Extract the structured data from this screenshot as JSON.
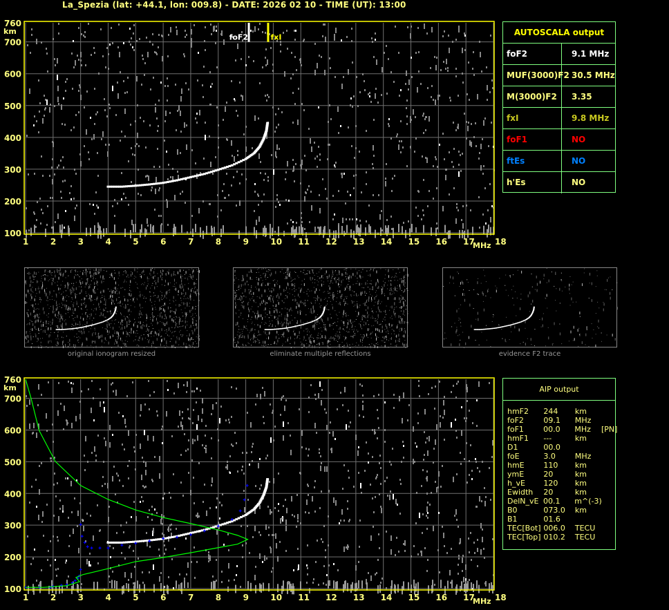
{
  "header": {
    "title": "La_Spezia (lat: +44.1, lon: 009.8) - DATE: 2026 02 10 - TIME (UT): 13:00"
  },
  "autoscala": {
    "title": "AUTOSCALA output",
    "rows": [
      {
        "label": "foF2",
        "value": "9.1 MHz",
        "color": "#ffffff"
      },
      {
        "label": "MUF(3000)F2",
        "value": "30.5 MHz",
        "color": "#ffff80"
      },
      {
        "label": "M(3000)F2",
        "value": "3.35",
        "color": "#ffff80"
      },
      {
        "label": "fxI",
        "value": "9.8 MHz",
        "color": "#c8c820"
      },
      {
        "label": "foF1",
        "value": "NO",
        "color": "#ff0000"
      },
      {
        "label": "ftEs",
        "value": "NO",
        "color": "#0080ff"
      },
      {
        "label": "h'Es",
        "value": "NO",
        "color": "#ffff80"
      }
    ]
  },
  "aip": {
    "title": "AIP output",
    "rows": [
      [
        "hmF2",
        "244",
        "km",
        ""
      ],
      [
        "foF2",
        "09.1",
        "MHz",
        ""
      ],
      [
        "foF1",
        "00.0",
        "MHz",
        "[PN]"
      ],
      [
        "hmF1",
        "---",
        "km",
        ""
      ],
      [
        "D1",
        "00.0",
        "",
        ""
      ],
      [
        "foE",
        "3.0",
        "MHz",
        ""
      ],
      [
        "hmE",
        "110",
        "km",
        ""
      ],
      [
        "ymE",
        "20",
        "km",
        ""
      ],
      [
        "h_vE",
        "120",
        "km",
        ""
      ],
      [
        "Ewidth",
        "20",
        "km",
        ""
      ],
      [
        "DelN_vE",
        "00.1",
        "m^(-3)",
        ""
      ],
      [
        "B0",
        "073.0",
        "km",
        ""
      ],
      [
        "B1",
        "01.6",
        "",
        ""
      ],
      [
        "TEC[Bot]",
        "006.0",
        "TECU",
        ""
      ],
      [
        "TEC[Top]",
        "010.2",
        "TECU",
        ""
      ]
    ]
  },
  "thumbnails": [
    {
      "caption": "original ionogram resized"
    },
    {
      "caption": "eliminate multiple reflections"
    },
    {
      "caption": "evidence F2 trace"
    }
  ],
  "chart_data": [
    {
      "type": "scatter",
      "title": "",
      "xlabel": "MHz",
      "ylabel": "km",
      "xlim": [
        1,
        18
      ],
      "ylim": [
        100,
        760
      ],
      "xticks": [
        "1",
        "2",
        "3",
        "4",
        "5",
        "6",
        "7",
        "8",
        "9",
        "10",
        "11",
        "12",
        "13",
        "14",
        "15",
        "16",
        "17",
        "18"
      ],
      "yticks": [
        "100",
        "200",
        "300",
        "400",
        "500",
        "600",
        "700",
        "760"
      ],
      "grid": true,
      "markers": [
        {
          "label": "foF2",
          "x": 9.1,
          "color": "#ffffff"
        },
        {
          "label": "fxI",
          "x": 9.8,
          "color": "#ffff00"
        }
      ],
      "series": [
        {
          "color": "#ffffff",
          "points": [
            [
              4.0,
              245
            ],
            [
              4.5,
              245
            ],
            [
              5,
              248
            ],
            [
              5.5,
              252
            ],
            [
              6,
              257
            ],
            [
              6.5,
              265
            ],
            [
              7,
              275
            ],
            [
              7.5,
              285
            ],
            [
              8,
              298
            ],
            [
              8.5,
              312
            ],
            [
              9,
              332
            ],
            [
              9.3,
              350
            ],
            [
              9.5,
              370
            ],
            [
              9.65,
              395
            ],
            [
              9.75,
              420
            ],
            [
              9.8,
              450
            ]
          ]
        }
      ]
    },
    {
      "type": "line",
      "title": "",
      "xlabel": "MHz",
      "ylabel": "km",
      "xlim": [
        1,
        18
      ],
      "ylim": [
        100,
        760
      ],
      "xticks": [
        "1",
        "2",
        "3",
        "4",
        "5",
        "6",
        "7",
        "8",
        "9",
        "10",
        "11",
        "12",
        "13",
        "14",
        "15",
        "16",
        "17",
        "18"
      ],
      "yticks": [
        "100",
        "200",
        "300",
        "400",
        "500",
        "600",
        "700",
        "760"
      ],
      "grid": true,
      "series": [
        {
          "kind": "trace",
          "color": "#ffffff",
          "points": [
            [
              4.0,
              245
            ],
            [
              4.5,
              245
            ],
            [
              5,
              248
            ],
            [
              5.5,
              252
            ],
            [
              6,
              257
            ],
            [
              6.5,
              265
            ],
            [
              7,
              275
            ],
            [
              7.5,
              285
            ],
            [
              8,
              298
            ],
            [
              8.5,
              312
            ],
            [
              9,
              332
            ],
            [
              9.3,
              350
            ],
            [
              9.5,
              370
            ],
            [
              9.65,
              395
            ],
            [
              9.75,
              420
            ],
            [
              9.8,
              450
            ]
          ]
        },
        {
          "kind": "fitted-trace",
          "color": "#0000ff",
          "points": [
            [
              1.0,
              104
            ],
            [
              1.5,
              104
            ],
            [
              1.9,
              104
            ],
            [
              2.0,
              107
            ],
            [
              2.3,
              110
            ],
            [
              2.5,
              112
            ],
            [
              2.7,
              118
            ],
            [
              2.8,
              125
            ],
            [
              2.9,
              133
            ],
            [
              2.95,
              140
            ],
            [
              3.0,
              160
            ],
            [
              3.0,
              302
            ],
            [
              3.05,
              265
            ],
            [
              3.15,
              245
            ],
            [
              3.25,
              232
            ],
            [
              3.4,
              228
            ],
            [
              3.7,
              228
            ],
            [
              4.0,
              228
            ],
            [
              4.5,
              237
            ],
            [
              5,
              243
            ],
            [
              5.5,
              250
            ],
            [
              6,
              258
            ],
            [
              6.5,
              262
            ],
            [
              7,
              270
            ],
            [
              7.5,
              282
            ],
            [
              8,
              297
            ],
            [
              8.5,
              318
            ],
            [
              8.8,
              345
            ],
            [
              8.95,
              380
            ],
            [
              9.05,
              425
            ]
          ]
        },
        {
          "kind": "profile",
          "color": "#00ff00",
          "points": [
            [
              1.0,
              760
            ],
            [
              1.2,
              700
            ],
            [
              1.49,
              599
            ],
            [
              2.08,
              501
            ],
            [
              3.0,
              425
            ],
            [
              4.0,
              381
            ],
            [
              5.0,
              348
            ],
            [
              6.0,
              324
            ],
            [
              7.0,
              305
            ],
            [
              8.0,
              285
            ],
            [
              8.7,
              268
            ],
            [
              9.07,
              255
            ],
            [
              8.7,
              240
            ],
            [
              8.0,
              229
            ],
            [
              7.0,
              213
            ],
            [
              6.0,
              198
            ],
            [
              5.0,
              185
            ],
            [
              4.0,
              163
            ],
            [
              3.08,
              144
            ],
            [
              2.83,
              135
            ],
            [
              2.96,
              122
            ],
            [
              2.5,
              109
            ],
            [
              1.65,
              104
            ],
            [
              1.0,
              104
            ]
          ]
        }
      ]
    }
  ]
}
